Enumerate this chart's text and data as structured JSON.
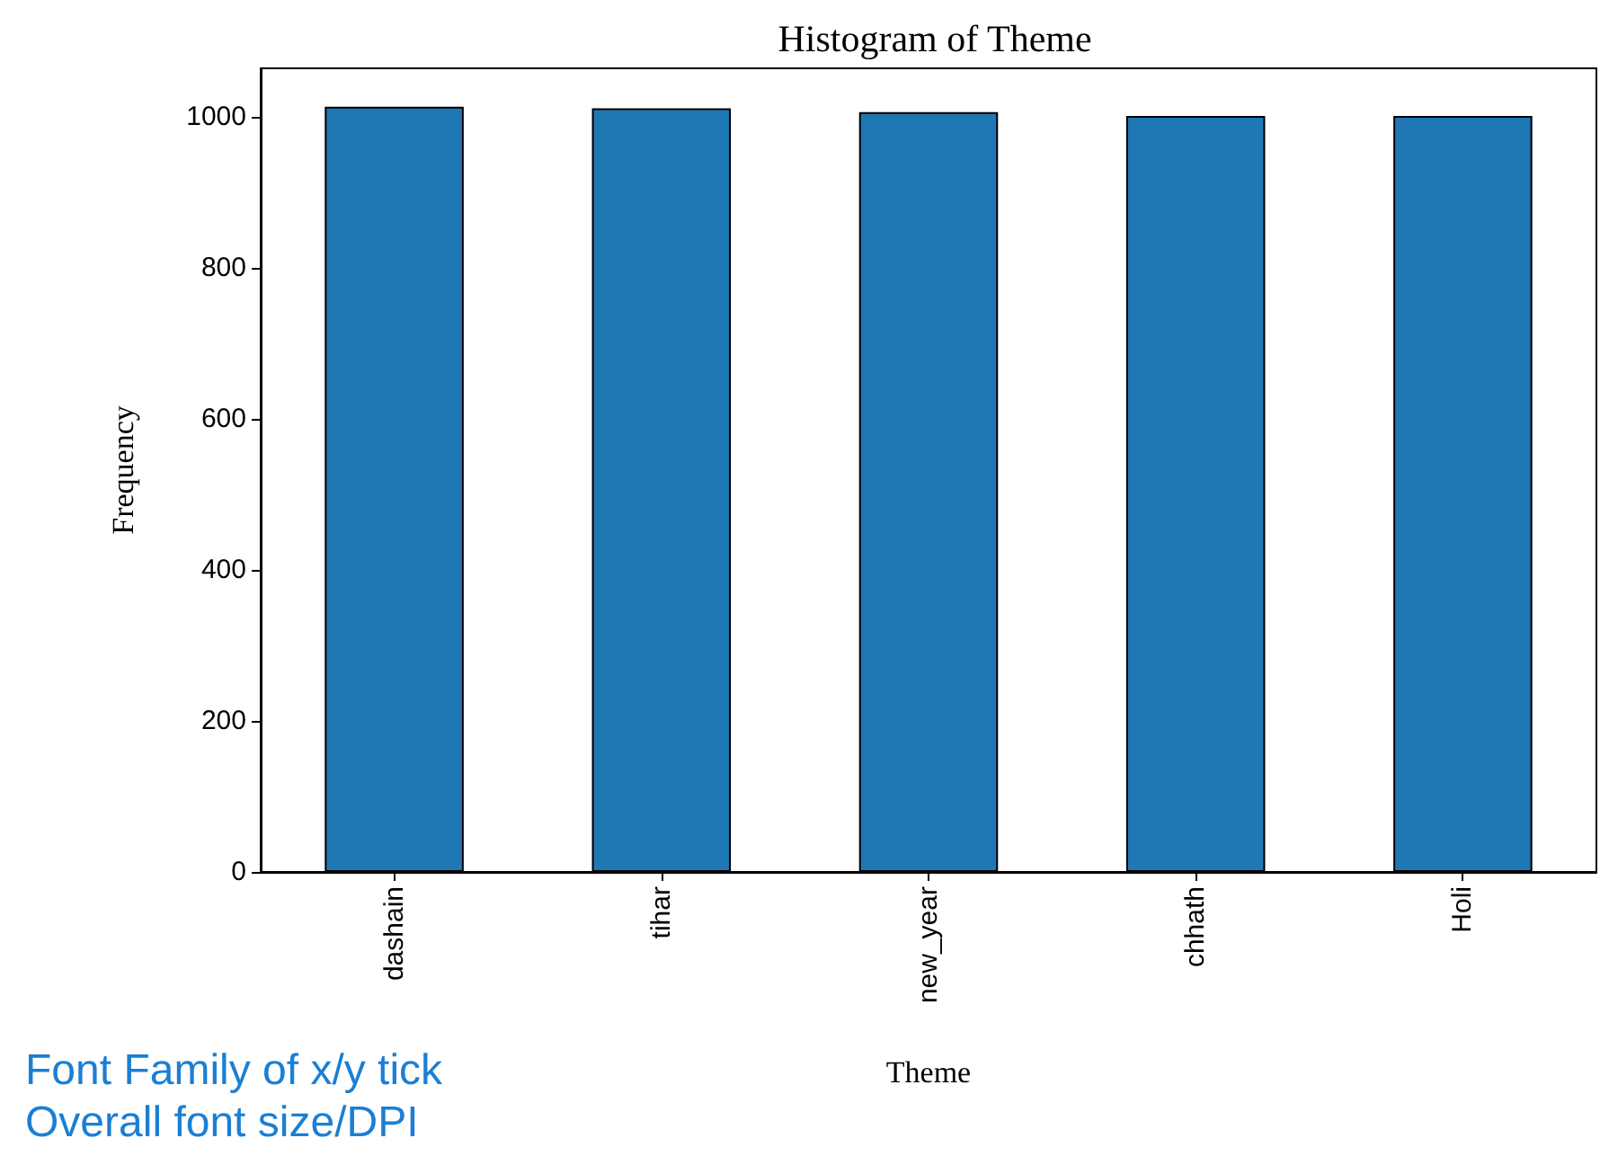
{
  "chart_data": {
    "type": "bar",
    "title": "Histogram of Theme",
    "xlabel": "Theme",
    "ylabel": "Frequency",
    "categories": [
      "dashain",
      "tihar",
      "new_year",
      "chhath",
      "Holi"
    ],
    "values": [
      1013,
      1011,
      1006,
      1001,
      1001
    ],
    "color": "#1f77b4",
    "ylim": [
      0,
      1064
    ],
    "yticks": [
      0,
      200,
      400,
      600,
      800,
      1000
    ],
    "grid": false,
    "annotations": [
      "Font Family of x/y tick",
      "Overall font size/DPI"
    ]
  }
}
